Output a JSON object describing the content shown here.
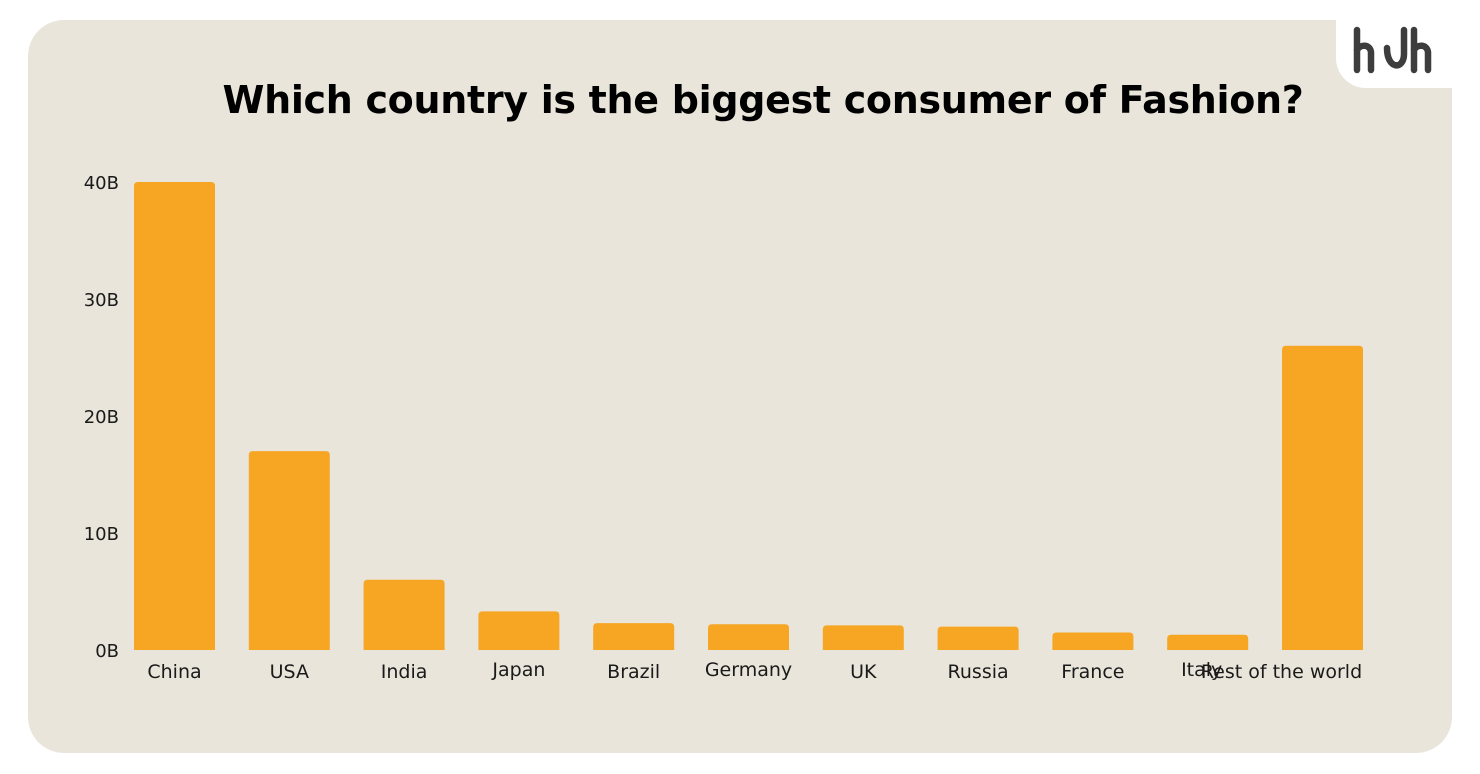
{
  "brand": {
    "logo_text": "hdh",
    "logo_color": "#3d3d3d"
  },
  "colors": {
    "card_background": "#e9e5da",
    "bar": "#f6a623",
    "text": "#1a1a1a"
  },
  "chart_data": {
    "type": "bar",
    "title": "Which country is the biggest consumer of Fashion?",
    "xlabel": "",
    "ylabel": "",
    "categories": [
      "China",
      "USA",
      "India",
      "Japan",
      "Brazil",
      "Germany",
      "UK",
      "Russia",
      "France",
      "Italy",
      "Rest of the world"
    ],
    "values": [
      40,
      17,
      6,
      3.3,
      2.3,
      2.2,
      2.1,
      2.0,
      1.5,
      1.3,
      26
    ],
    "value_unit": "B",
    "ylim": [
      0,
      40
    ],
    "yticks": [
      0,
      10,
      20,
      30,
      40
    ],
    "ytick_labels": [
      "0B",
      "10B",
      "20B",
      "30B",
      "40B"
    ],
    "grid": false,
    "legend": "none"
  }
}
